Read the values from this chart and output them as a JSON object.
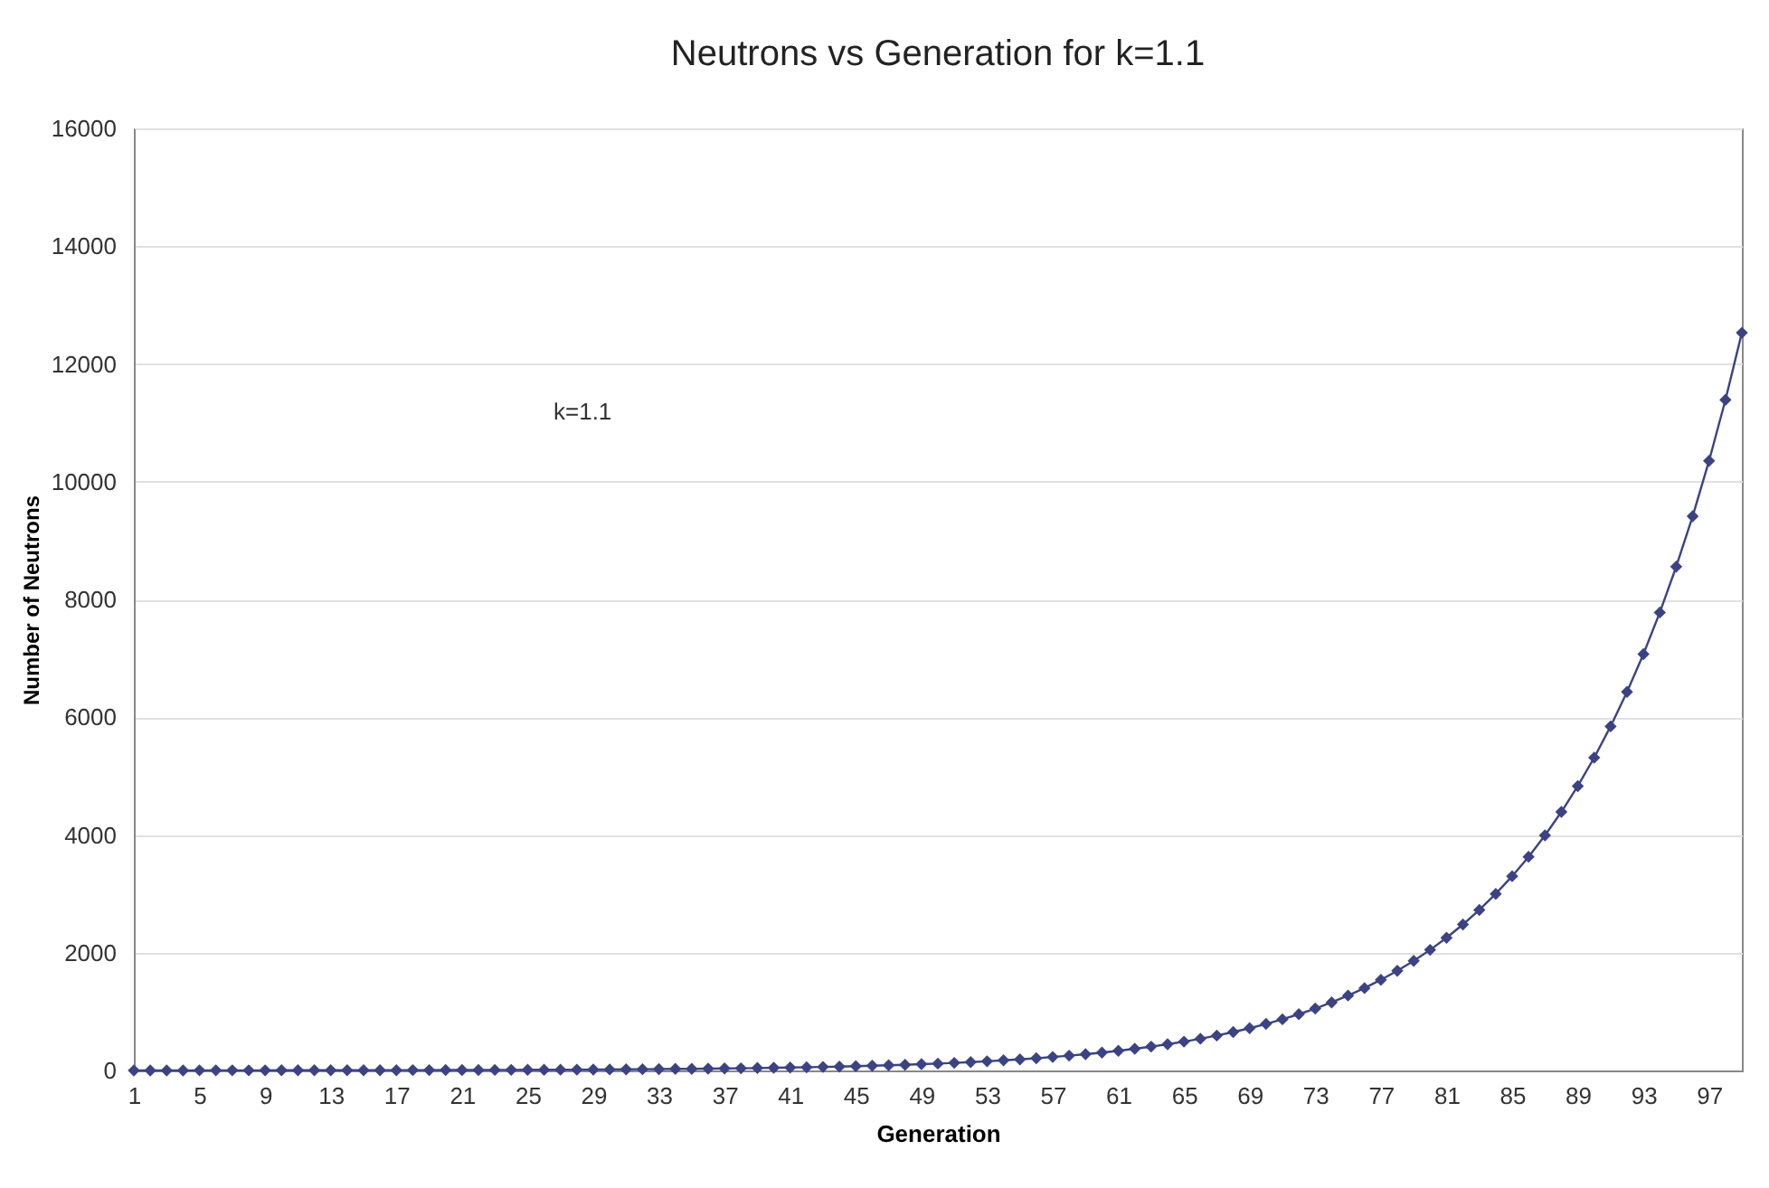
{
  "chart_data": {
    "type": "line",
    "title": "Neutrons vs Generation for k=1.1",
    "xlabel": "Generation",
    "ylabel": "Number of Neutrons",
    "categories": [
      "1",
      null,
      null,
      null,
      "5",
      null,
      null,
      null,
      "9",
      null,
      null,
      null,
      "13",
      null,
      null,
      null,
      "17",
      null,
      null,
      null,
      "21",
      null,
      null,
      null,
      "25",
      null,
      null,
      null,
      "29",
      null,
      null,
      null,
      "33",
      null,
      null,
      null,
      "37",
      null,
      null,
      null,
      "41",
      null,
      null,
      null,
      "45",
      null,
      null,
      null,
      "49",
      null,
      null,
      null,
      "53",
      null,
      null,
      null,
      "57",
      null,
      null,
      null,
      "61",
      null,
      null,
      null,
      "65",
      null,
      null,
      null,
      "69",
      null,
      null,
      null,
      "73",
      null,
      null,
      null,
      "77",
      null,
      null,
      null,
      "81",
      null,
      null,
      null,
      "85",
      null,
      null,
      null,
      "89",
      null,
      null,
      null,
      "93",
      null,
      null,
      null,
      "97",
      null,
      null
    ],
    "series": [
      {
        "color": "#3b4383",
        "values": [
          1,
          1,
          1,
          1,
          2,
          2,
          2,
          2,
          2,
          3,
          3,
          3,
          3,
          4,
          4,
          5,
          5,
          6,
          6,
          7,
          7,
          8,
          9,
          10,
          11,
          12,
          13,
          14,
          16,
          17,
          19,
          21,
          23,
          26,
          28,
          31,
          34,
          37,
          41,
          45,
          50,
          55,
          60,
          66,
          73,
          80,
          88,
          97,
          107,
          117,
          129,
          142,
          156,
          172,
          189,
          208,
          229,
          252,
          277,
          304,
          335,
          368,
          405,
          446,
          490,
          539,
          593,
          653,
          718,
          790,
          869,
          956,
          1051,
          1156,
          1272,
          1399,
          1539,
          1693,
          1862,
          2048,
          2253,
          2479,
          2726,
          2999,
          3299,
          3629,
          3992,
          4391,
          4830,
          5313,
          5844,
          6429,
          7072,
          7779,
          8557,
          9412,
          10354,
          11389,
          12528
        ]
      }
    ],
    "ylim": [
      0,
      16000
    ],
    "yticks": [
      0,
      2000,
      4000,
      6000,
      8000,
      10000,
      12000,
      14000,
      16000
    ],
    "grid": "y",
    "marker": "diamond",
    "line_style": "solid",
    "annotations": [
      "k=1.1"
    ]
  }
}
